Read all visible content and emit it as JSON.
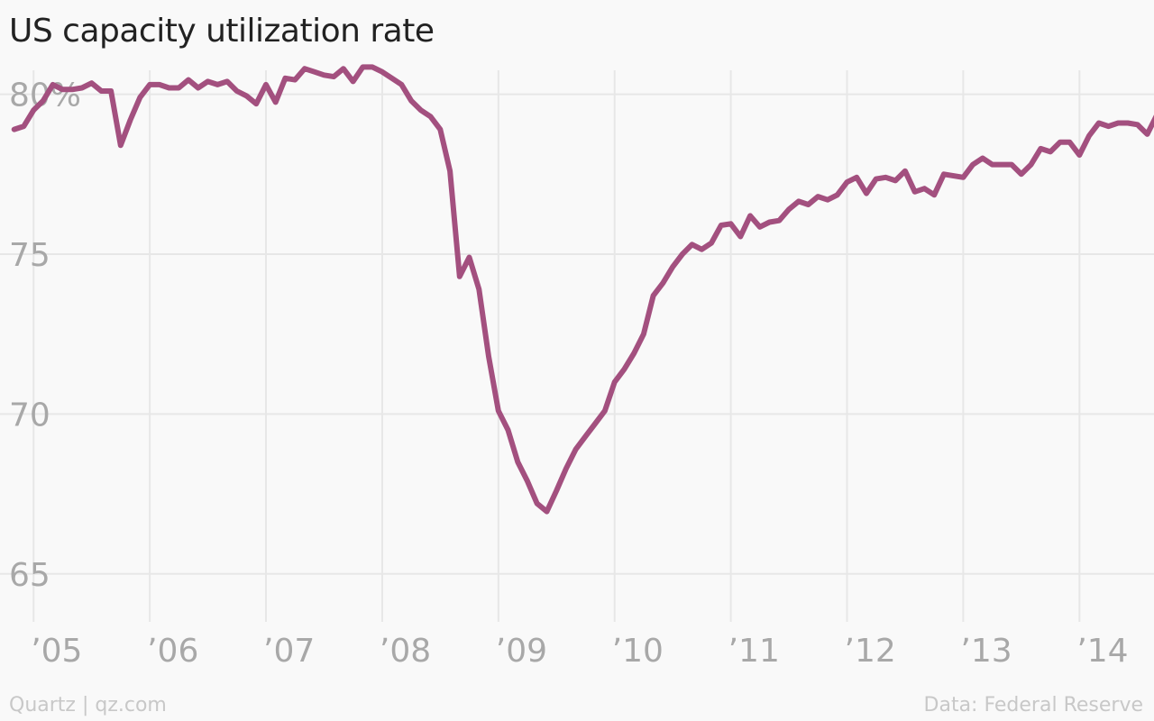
{
  "chart_data": {
    "type": "line",
    "title": "US capacity utilization rate",
    "source_left": "Quartz | qz.com",
    "source_right": "Data: Federal Reserve",
    "color": "#a3507f",
    "grid_color": "#e7e7e7",
    "x_axis": {
      "ticks": [
        2005,
        2006,
        2007,
        2008,
        2009,
        2010,
        2011,
        2012,
        2013,
        2014
      ],
      "tick_labels": [
        "’05",
        "’06",
        "’07",
        "’08",
        "’09",
        "’10",
        "’11",
        "’12",
        "’13",
        "’14"
      ]
    },
    "y_axis": {
      "ticks": [
        65,
        70,
        75,
        80
      ],
      "tick_labels": [
        "65",
        "70",
        "75",
        "80%"
      ],
      "ylim": [
        63.5,
        81.2
      ]
    },
    "xlim": [
      2004.82,
      2014.75
    ],
    "grid": true,
    "series": [
      {
        "x_start": 2004.833,
        "step_months": 1,
        "values": [
          78.9,
          79.0,
          79.5,
          79.8,
          80.3,
          80.15,
          80.15,
          80.2,
          80.35,
          80.1,
          80.1,
          78.4,
          79.2,
          79.9,
          80.3,
          80.3,
          80.2,
          80.2,
          80.45,
          80.2,
          80.4,
          80.3,
          80.4,
          80.1,
          79.95,
          79.7,
          80.3,
          79.75,
          80.5,
          80.45,
          80.8,
          80.7,
          80.6,
          80.55,
          80.8,
          80.4,
          80.85,
          80.85,
          80.7,
          80.5,
          80.3,
          79.8,
          79.5,
          79.3,
          78.9,
          77.6,
          74.3,
          74.9,
          73.9,
          71.8,
          70.1,
          69.5,
          68.5,
          67.9,
          67.2,
          66.95,
          67.6,
          68.3,
          68.9,
          69.3,
          69.7,
          70.1,
          71.0,
          71.4,
          71.9,
          72.5,
          73.7,
          74.1,
          74.6,
          75.0,
          75.3,
          75.15,
          75.35,
          75.9,
          75.95,
          75.55,
          76.2,
          75.85,
          76.0,
          76.05,
          76.4,
          76.65,
          76.55,
          76.8,
          76.7,
          76.85,
          77.25,
          77.4,
          76.9,
          77.35,
          77.4,
          77.3,
          77.6,
          76.95,
          77.05,
          76.85,
          77.5,
          77.45,
          77.4,
          77.8,
          78.0,
          77.8,
          77.8,
          77.8,
          77.5,
          77.8,
          78.3,
          78.2,
          78.5,
          78.5,
          78.1,
          78.7,
          79.1,
          79.0,
          79.1,
          79.1,
          79.05,
          78.75,
          79.35
        ]
      }
    ]
  }
}
